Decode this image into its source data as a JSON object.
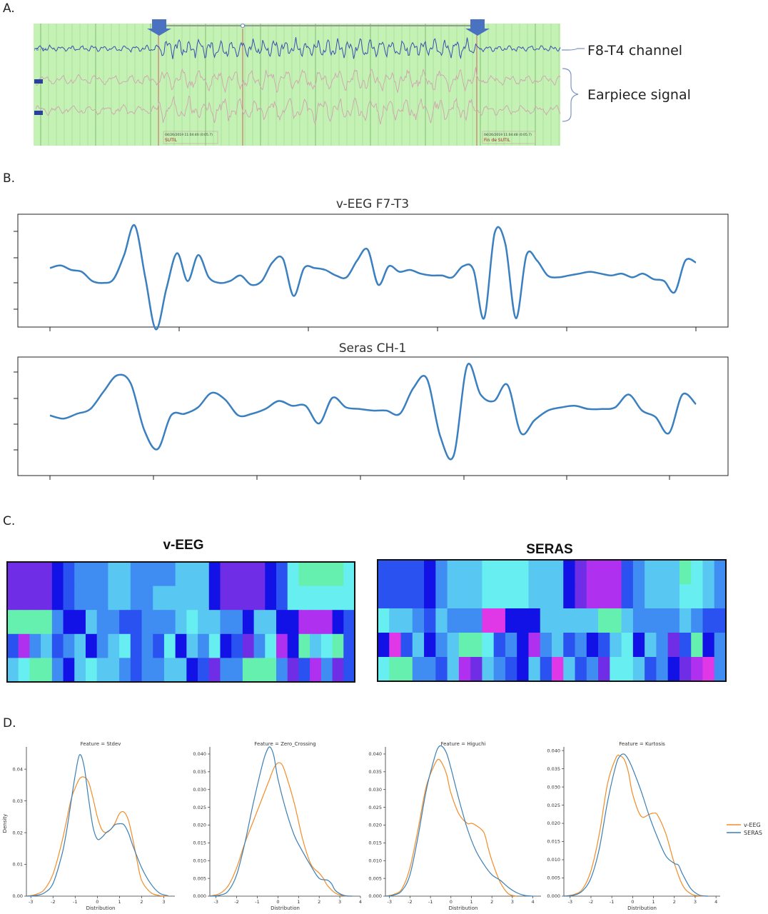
{
  "panel_labels": {
    "a": "A.",
    "b": "B.",
    "c": "C.",
    "d": "D."
  },
  "panel_a": {
    "channel_tag": "F8 - T4",
    "channel_label": "F8-T4 channel",
    "earpiece_label": "Earpiece signal",
    "marker_left": {
      "line1": "04/26/2019 11:04:40 (0:05.7)",
      "line2": "SUTIL"
    },
    "marker_right": {
      "line1": "04/26/2019 11:04:48 (0:05.7)",
      "line2": "Fin de SUTIL"
    },
    "colors": {
      "background": "#c4f2b4",
      "gridline": "#9ed48f",
      "eeg_trace": "#3a4fb0",
      "earpiece_trace": "#d0a3b0",
      "arrow": "#4a72c0"
    }
  },
  "panel_b": {
    "trace_color": "#3a7fc0",
    "chart_titles": [
      "v-EEG F7-T3",
      "Seras CH-1"
    ]
  },
  "panel_c": {
    "titles": [
      "v-EEG",
      "SERAS"
    ],
    "palette": [
      "#1212e6",
      "#2a52f0",
      "#3f8df2",
      "#58c7f2",
      "#66eef0",
      "#66f0b0",
      "#6f2ee6",
      "#b030f0",
      "#e038e6"
    ]
  },
  "panel_d": {
    "legend": [
      {
        "name": "v-EEG",
        "color": "#f28c28"
      },
      {
        "name": "SERAS",
        "color": "#3b7fb5"
      }
    ],
    "xlabel": "Distribution",
    "ylabel": "Density"
  },
  "chart_data": [
    {
      "type": "line",
      "title": "v-EEG F7-T3",
      "xlabel": "",
      "ylabel": "",
      "x_ticks": 6,
      "y_ticks": 4,
      "series": [
        {
          "values": [
            0.05,
            0.12,
            0.0,
            -0.05,
            -0.3,
            -0.35,
            -0.25,
            0.4,
            1.2,
            -0.2,
            -1.6,
            -0.5,
            0.45,
            -0.3,
            0.4,
            -0.2,
            -0.35,
            -0.3,
            -0.15,
            -0.4,
            -0.3,
            0.2,
            0.3,
            -0.7,
            0.05,
            0.05,
            0.0,
            -0.15,
            -0.2,
            0.25,
            0.55,
            -0.4,
            0.1,
            -0.05,
            0.0,
            -0.1,
            -0.15,
            -0.15,
            -0.2,
            0.1,
            0.0,
            -1.3,
            1.0,
            0.7,
            -1.3,
            0.4,
            0.25,
            -0.15,
            -0.2,
            -0.15,
            -0.1,
            -0.05,
            -0.1,
            -0.15,
            -0.1,
            -0.2,
            -0.1,
            -0.25,
            -0.3,
            -0.6,
            0.25,
            0.2
          ]
        }
      ]
    },
    {
      "type": "line",
      "title": "Seras CH-1",
      "xlabel": "",
      "ylabel": "",
      "x_ticks": 7,
      "y_ticks": 4,
      "series": [
        {
          "values": [
            -0.15,
            -0.25,
            -0.1,
            0.05,
            0.6,
            1.1,
            0.85,
            -0.6,
            -1.2,
            -0.15,
            -0.1,
            0.1,
            0.55,
            0.35,
            -0.15,
            -0.1,
            0.05,
            0.3,
            0.15,
            0.15,
            -0.4,
            0.4,
            0.1,
            0.05,
            0.0,
            0.0,
            -0.1,
            0.7,
            1.0,
            -0.8,
            -1.4,
            1.4,
            0.5,
            0.3,
            0.8,
            -0.7,
            -0.3,
            0.0,
            0.1,
            0.15,
            0.05,
            0.05,
            0.1,
            0.5,
            0.0,
            -0.2,
            -0.7,
            0.5,
            0.2
          ]
        }
      ]
    },
    {
      "type": "heatmap",
      "title": "v-EEG",
      "rows": [
        [
          6,
          6,
          6,
          6,
          0,
          1,
          2,
          2,
          2,
          3,
          3,
          2,
          2,
          2,
          2,
          3,
          3,
          3,
          0,
          6,
          6,
          6,
          6,
          0,
          1,
          4,
          5,
          5,
          5,
          5,
          4
        ],
        [
          6,
          6,
          6,
          6,
          0,
          1,
          2,
          2,
          2,
          3,
          3,
          2,
          2,
          3,
          3,
          3,
          3,
          3,
          0,
          6,
          6,
          6,
          6,
          0,
          1,
          4,
          4,
          4,
          4,
          4,
          4
        ],
        [
          5,
          5,
          5,
          5,
          2,
          0,
          0,
          3,
          2,
          2,
          1,
          1,
          2,
          2,
          2,
          3,
          4,
          3,
          3,
          2,
          2,
          0,
          3,
          3,
          0,
          0,
          7,
          7,
          7,
          0,
          1
        ],
        [
          1,
          7,
          2,
          3,
          1,
          2,
          3,
          0,
          2,
          3,
          4,
          1,
          2,
          1,
          4,
          0,
          3,
          2,
          4,
          0,
          1,
          6,
          2,
          4,
          7,
          0,
          5,
          3,
          4,
          5,
          1
        ],
        [
          3,
          4,
          5,
          5,
          2,
          0,
          3,
          4,
          3,
          3,
          2,
          1,
          2,
          2,
          3,
          3,
          0,
          1,
          6,
          2,
          2,
          5,
          5,
          5,
          2,
          6,
          1,
          7,
          2,
          6,
          1
        ]
      ]
    },
    {
      "type": "heatmap",
      "title": "SERAS",
      "rows": [
        [
          1,
          1,
          1,
          1,
          0,
          2,
          3,
          3,
          3,
          4,
          4,
          4,
          4,
          3,
          3,
          3,
          0,
          6,
          7,
          7,
          7,
          1,
          2,
          3,
          3,
          3,
          5,
          4,
          3,
          2
        ],
        [
          1,
          1,
          1,
          1,
          0,
          2,
          3,
          3,
          3,
          4,
          4,
          4,
          4,
          3,
          3,
          3,
          0,
          6,
          7,
          7,
          7,
          1,
          2,
          3,
          3,
          3,
          4,
          4,
          3,
          2
        ],
        [
          4,
          3,
          3,
          2,
          1,
          3,
          2,
          2,
          2,
          8,
          8,
          0,
          0,
          0,
          3,
          3,
          3,
          3,
          3,
          5,
          5,
          3,
          2,
          2,
          2,
          2,
          3,
          2,
          1,
          1
        ],
        [
          0,
          8,
          1,
          3,
          0,
          2,
          3,
          5,
          5,
          4,
          1,
          2,
          0,
          7,
          2,
          3,
          1,
          2,
          0,
          1,
          3,
          4,
          0,
          3,
          2,
          6,
          1,
          5,
          0,
          2
        ],
        [
          4,
          5,
          5,
          2,
          2,
          1,
          3,
          7,
          6,
          3,
          2,
          1,
          0,
          3,
          1,
          8,
          3,
          1,
          2,
          6,
          4,
          4,
          3,
          1,
          2,
          0,
          6,
          7,
          8,
          2
        ]
      ]
    },
    {
      "type": "line",
      "title": "Feature = Stdev",
      "xlabel": "Distribution",
      "ylabel": "Density",
      "x_range": [
        -3.2,
        3.5
      ],
      "ylim": [
        0,
        0.047
      ],
      "x_ticks": [
        -3,
        -2,
        -1,
        0,
        1,
        2,
        3
      ],
      "y_ticks": [
        0.0,
        0.01,
        0.02,
        0.03,
        0.04
      ],
      "y_tick_labels": [
        "0.00",
        "0.01",
        "0.02",
        "0.03",
        "0.04"
      ],
      "series": [
        {
          "name": "v-EEG",
          "x": [
            -3.2,
            -2.8,
            -2.4,
            -2.0,
            -1.6,
            -1.2,
            -1.0,
            -0.8,
            -0.6,
            -0.4,
            -0.2,
            0.0,
            0.2,
            0.4,
            0.6,
            0.8,
            1.0,
            1.2,
            1.4,
            1.6,
            1.8,
            2.0,
            2.4,
            2.8,
            3.2
          ],
          "values": [
            0.0,
            0.0005,
            0.002,
            0.007,
            0.017,
            0.03,
            0.034,
            0.037,
            0.0375,
            0.036,
            0.031,
            0.025,
            0.021,
            0.02,
            0.021,
            0.023,
            0.026,
            0.0265,
            0.024,
            0.018,
            0.011,
            0.005,
            0.0012,
            0.0002,
            0.0
          ]
        },
        {
          "name": "SERAS",
          "x": [
            -3.2,
            -2.8,
            -2.4,
            -2.0,
            -1.6,
            -1.4,
            -1.2,
            -1.0,
            -0.8,
            -0.6,
            -0.4,
            -0.2,
            0.0,
            0.2,
            0.4,
            0.6,
            0.8,
            1.0,
            1.2,
            1.4,
            1.6,
            2.0,
            2.4,
            2.8,
            3.2
          ],
          "values": [
            0.0,
            0.0002,
            0.001,
            0.004,
            0.013,
            0.02,
            0.029,
            0.038,
            0.0445,
            0.041,
            0.031,
            0.022,
            0.018,
            0.0185,
            0.02,
            0.021,
            0.0225,
            0.0228,
            0.0225,
            0.02,
            0.016,
            0.009,
            0.004,
            0.001,
            0.0001
          ]
        }
      ]
    },
    {
      "type": "line",
      "title": "Feature = Zero_Crossing",
      "xlabel": "Distribution",
      "ylabel": "",
      "x_range": [
        -3.3,
        4.0
      ],
      "ylim": [
        0,
        0.042
      ],
      "x_ticks": [
        -3,
        -2,
        -1,
        0,
        1,
        2,
        3,
        4
      ],
      "y_ticks": [
        0.0,
        0.005,
        0.01,
        0.015,
        0.02,
        0.025,
        0.03,
        0.035,
        0.04
      ],
      "y_tick_labels": [
        "0.000",
        "0.005",
        "0.010",
        "0.015",
        "0.020",
        "0.025",
        "0.030",
        "0.035",
        "0.040"
      ],
      "series": [
        {
          "name": "v-EEG",
          "x": [
            -3.3,
            -2.8,
            -2.4,
            -2.0,
            -1.6,
            -1.2,
            -0.8,
            -0.4,
            -0.2,
            0.0,
            0.2,
            0.4,
            0.8,
            1.2,
            1.6,
            2.0,
            2.2,
            2.4,
            2.8,
            3.2,
            3.6
          ],
          "values": [
            0.0,
            0.0008,
            0.003,
            0.008,
            0.015,
            0.021,
            0.027,
            0.033,
            0.036,
            0.0375,
            0.037,
            0.034,
            0.026,
            0.016,
            0.009,
            0.0065,
            0.005,
            0.003,
            0.0008,
            0.0001,
            0.0
          ]
        },
        {
          "name": "SERAS",
          "x": [
            -3.3,
            -2.8,
            -2.4,
            -2.0,
            -1.6,
            -1.2,
            -0.8,
            -0.6,
            -0.4,
            -0.2,
            0.0,
            0.4,
            0.8,
            1.2,
            1.6,
            2.0,
            2.4,
            2.6,
            2.8,
            3.2,
            3.6
          ],
          "values": [
            0.0,
            0.0003,
            0.0015,
            0.006,
            0.015,
            0.026,
            0.036,
            0.04,
            0.042,
            0.0395,
            0.033,
            0.024,
            0.017,
            0.0125,
            0.0085,
            0.005,
            0.0045,
            0.0035,
            0.0015,
            0.0002,
            0.0
          ]
        }
      ]
    },
    {
      "type": "line",
      "title": "Feature = Higuchi",
      "xlabel": "Distribution",
      "ylabel": "",
      "x_range": [
        -3.2,
        4.4
      ],
      "ylim": [
        0,
        0.042
      ],
      "x_ticks": [
        -3,
        -2,
        -1,
        0,
        1,
        2,
        3,
        4
      ],
      "y_ticks": [
        0.0,
        0.005,
        0.01,
        0.015,
        0.02,
        0.025,
        0.03,
        0.035,
        0.04
      ],
      "y_tick_labels": [
        "0.000",
        "0.005",
        "0.010",
        "0.015",
        "0.020",
        "0.025",
        "0.030",
        "0.035",
        "0.040"
      ],
      "series": [
        {
          "name": "v-EEG",
          "x": [
            -3.2,
            -2.8,
            -2.4,
            -2.0,
            -1.6,
            -1.2,
            -0.8,
            -0.6,
            -0.4,
            -0.2,
            0.0,
            0.4,
            0.8,
            1.0,
            1.2,
            1.6,
            1.8,
            2.0,
            2.4,
            2.8,
            3.2
          ],
          "values": [
            0.0,
            0.0005,
            0.002,
            0.008,
            0.019,
            0.031,
            0.037,
            0.0385,
            0.037,
            0.034,
            0.029,
            0.023,
            0.0205,
            0.0205,
            0.02,
            0.018,
            0.014,
            0.01,
            0.004,
            0.0007,
            0.0
          ]
        },
        {
          "name": "SERAS",
          "x": [
            -3.2,
            -2.8,
            -2.4,
            -2.0,
            -1.6,
            -1.2,
            -0.8,
            -0.6,
            -0.4,
            -0.2,
            0.0,
            0.4,
            0.8,
            1.2,
            1.6,
            2.0,
            2.4,
            2.8,
            3.2,
            3.6,
            4.0
          ],
          "values": [
            0.0,
            0.0003,
            0.0015,
            0.006,
            0.017,
            0.03,
            0.039,
            0.042,
            0.042,
            0.04,
            0.036,
            0.027,
            0.019,
            0.013,
            0.009,
            0.006,
            0.0045,
            0.0025,
            0.001,
            0.0002,
            0.0
          ]
        }
      ]
    },
    {
      "type": "line",
      "title": "Feature = Kurtosis",
      "xlabel": "Distribution",
      "ylabel": "",
      "x_range": [
        -3.3,
        4.2
      ],
      "ylim": [
        0,
        0.041
      ],
      "x_ticks": [
        -3,
        -2,
        -1,
        0,
        1,
        2,
        3,
        4
      ],
      "y_ticks": [
        0.0,
        0.005,
        0.01,
        0.015,
        0.02,
        0.025,
        0.03,
        0.035,
        0.04
      ],
      "y_tick_labels": [
        "0.000",
        "0.005",
        "0.010",
        "0.015",
        "0.020",
        "0.025",
        "0.030",
        "0.035",
        "0.040"
      ],
      "series": [
        {
          "name": "v-EEG",
          "x": [
            -3.3,
            -2.8,
            -2.4,
            -2.0,
            -1.6,
            -1.2,
            -0.8,
            -0.6,
            -0.4,
            -0.2,
            0.0,
            0.4,
            0.8,
            1.0,
            1.2,
            1.6,
            2.0,
            2.4,
            2.8,
            3.2,
            3.6
          ],
          "values": [
            0.0,
            0.0005,
            0.002,
            0.007,
            0.017,
            0.031,
            0.038,
            0.0385,
            0.0375,
            0.034,
            0.028,
            0.022,
            0.0225,
            0.0228,
            0.0222,
            0.017,
            0.009,
            0.003,
            0.0006,
            0.0001,
            0.0
          ]
        },
        {
          "name": "SERAS",
          "x": [
            -3.3,
            -2.8,
            -2.4,
            -2.0,
            -1.6,
            -1.2,
            -0.8,
            -0.6,
            -0.4,
            -0.2,
            0.0,
            0.4,
            0.8,
            1.2,
            1.6,
            2.0,
            2.2,
            2.4,
            2.8,
            3.2,
            3.6
          ],
          "values": [
            0.0,
            0.0003,
            0.0015,
            0.005,
            0.013,
            0.026,
            0.036,
            0.0385,
            0.039,
            0.0375,
            0.035,
            0.029,
            0.022,
            0.016,
            0.011,
            0.009,
            0.0085,
            0.006,
            0.002,
            0.0003,
            0.0
          ]
        }
      ]
    }
  ]
}
